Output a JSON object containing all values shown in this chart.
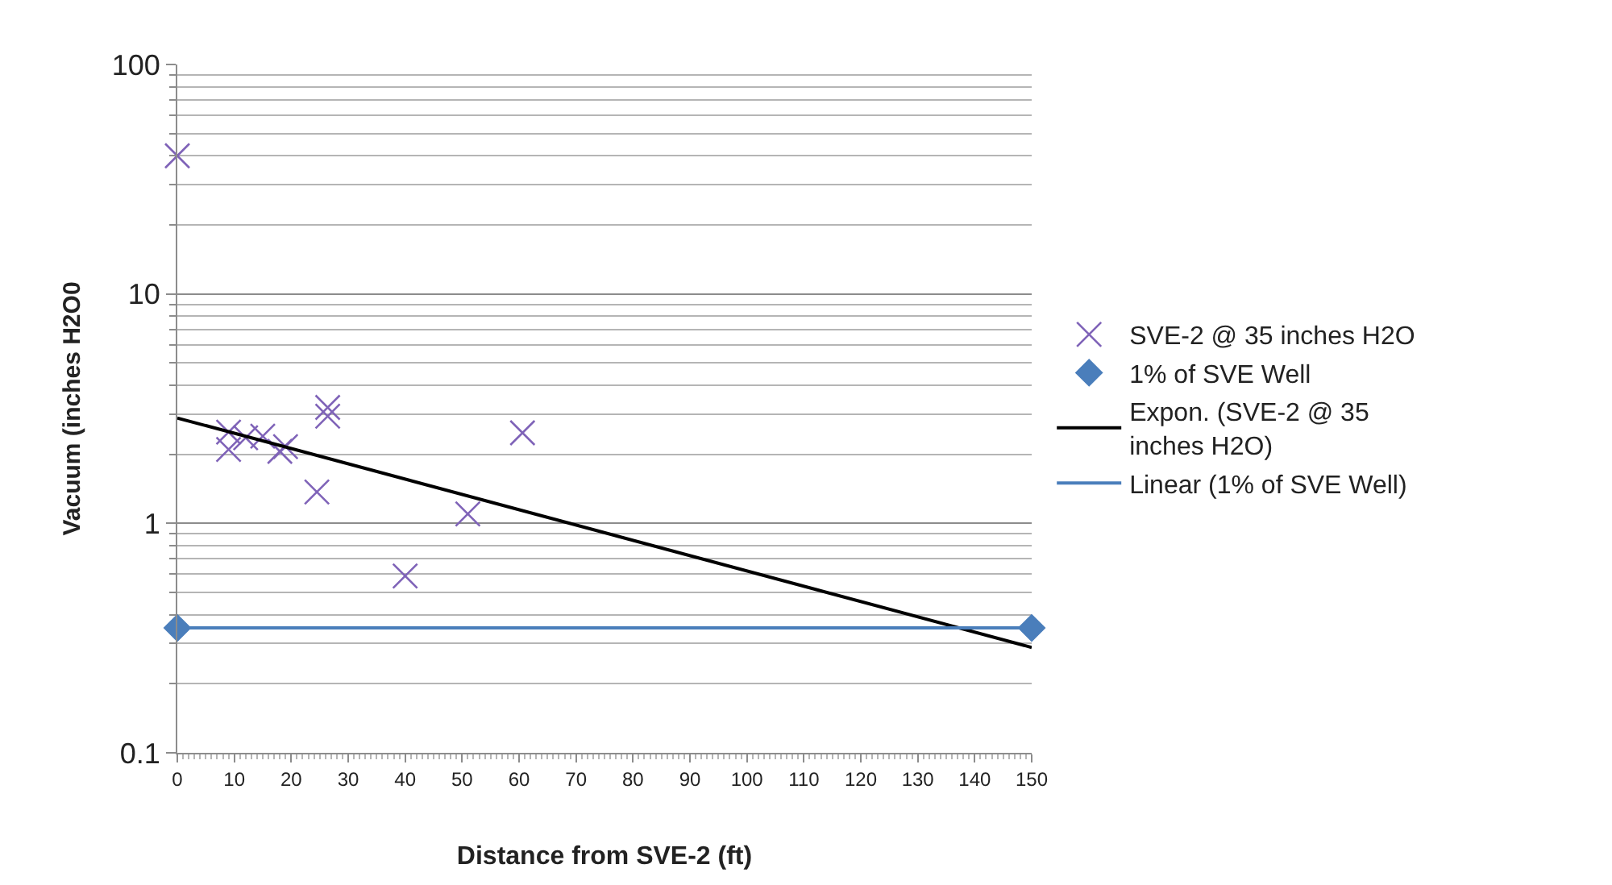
{
  "chart_data": {
    "type": "scatter",
    "xlabel": "Distance from SVE-2 (ft)",
    "ylabel": "Vacuum (inches H2O0",
    "log": "y",
    "grid": "y",
    "legend": "right",
    "xlim": [
      0,
      150
    ],
    "xticks": [
      0,
      10,
      20,
      30,
      40,
      50,
      60,
      70,
      80,
      90,
      100,
      110,
      120,
      130,
      140,
      150
    ],
    "ylim": [
      0.1,
      100
    ],
    "yticks": [
      0.1,
      1,
      10,
      100
    ],
    "series": [
      {
        "name": "SVE-2 @ 35 inches H2O",
        "marker": "cross",
        "color": "#7f63b8",
        "x": [
          0,
          9,
          9,
          12,
          15,
          18,
          19,
          24.5,
          26.4,
          26.4,
          40,
          51,
          60.6
        ],
        "values": [
          40,
          2.1,
          2.5,
          2.36,
          2.4,
          2.06,
          2.16,
          1.37,
          2.93,
          3.2,
          0.59,
          1.1,
          2.48
        ]
      },
      {
        "name": "1% of SVE Well",
        "marker": "diamond",
        "color": "#4a7ebb",
        "x": [
          0,
          150
        ],
        "values": [
          0.35,
          0.35
        ]
      },
      {
        "name": "Expon. (SVE-2 @ 35 inches H2O)",
        "type": "line",
        "marker": "none",
        "color": "#000000",
        "x": [
          0,
          150
        ],
        "values": [
          2.88,
          0.288
        ]
      },
      {
        "name": "Linear (1% of SVE Well)",
        "type": "line",
        "marker": "none",
        "color": "#4a7ebb",
        "x": [
          0,
          150
        ],
        "values": [
          0.35,
          0.35
        ]
      }
    ]
  }
}
